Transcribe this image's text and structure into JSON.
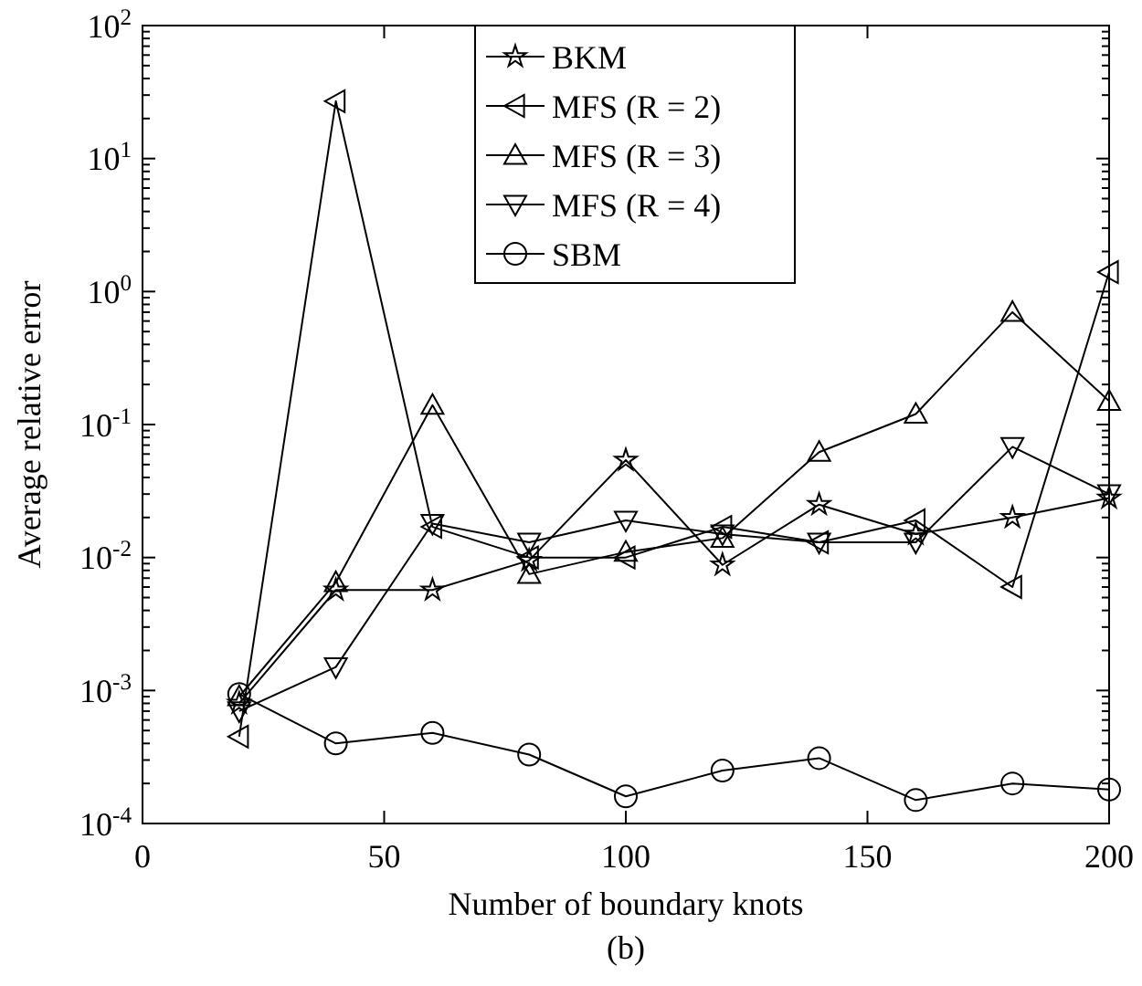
{
  "chart_data": {
    "type": "line",
    "xlabel": "Number of boundary knots",
    "ylabel": "Average relative error",
    "annotations": [
      "(b)"
    ],
    "x": [
      20,
      40,
      60,
      80,
      100,
      120,
      140,
      160,
      180,
      200
    ],
    "series": [
      {
        "name": "BKM",
        "color": "#000000",
        "marker": "star",
        "values": [
          0.0008,
          0.0057,
          0.0057,
          0.0095,
          0.054,
          0.0088,
          0.025,
          0.015,
          0.02,
          0.028
        ]
      },
      {
        "name": "MFS (R = 2)",
        "color": "#000000",
        "marker": "triangle-left",
        "values": [
          0.00045,
          27,
          0.017,
          0.01,
          0.01,
          0.017,
          0.013,
          0.019,
          0.006,
          1.4
        ]
      },
      {
        "name": "MFS (R = 3)",
        "color": "#000000",
        "marker": "triangle",
        "values": [
          0.0009,
          0.0065,
          0.14,
          0.0075,
          0.011,
          0.014,
          0.062,
          0.12,
          0.7,
          0.15
        ]
      },
      {
        "name": "MFS (R = 4)",
        "color": "#000000",
        "marker": "triangle-down",
        "values": [
          0.0007,
          0.0015,
          0.018,
          0.013,
          0.019,
          0.015,
          0.013,
          0.013,
          0.068,
          0.03
        ]
      },
      {
        "name": "SBM",
        "color": "#000000",
        "marker": "circle",
        "values": [
          0.00094,
          0.0004,
          0.00048,
          0.00033,
          0.00016,
          0.00025,
          0.00031,
          0.00015,
          0.0002,
          0.00018
        ]
      }
    ],
    "xlim": [
      0,
      200
    ],
    "xticks": [
      0,
      50,
      100,
      150,
      200
    ],
    "ylim": [
      0.0001,
      100
    ],
    "yticks": [
      {
        "value": 0.0001,
        "label": "10$^{-4}$"
      },
      {
        "value": 0.001,
        "label": "10$^{-3}$"
      },
      {
        "value": 0.01,
        "label": "10$^{-2}$"
      },
      {
        "value": 0.1,
        "label": "10$^{-1}$"
      },
      {
        "value": 1,
        "label": "10$^{0}$"
      },
      {
        "value": 10,
        "label": "10$^{1}$"
      },
      {
        "value": 100,
        "label": "10$^{2}$"
      }
    ],
    "log": true,
    "grid": false,
    "legend": "top right",
    "line_style": "solid"
  }
}
